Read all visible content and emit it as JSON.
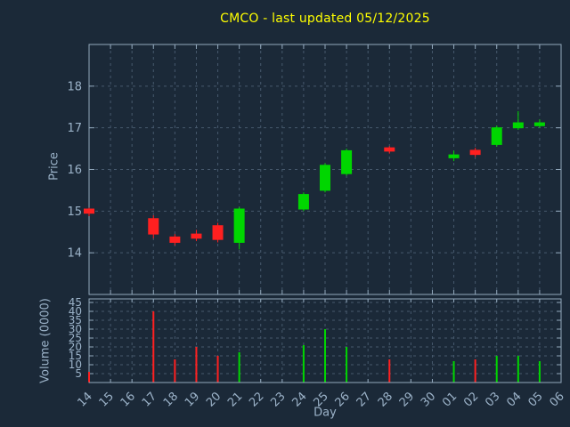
{
  "chart_data": {
    "type": "candlestick",
    "title": "CMCO - last updated 05/12/2025",
    "xlabel": "Day",
    "x_categories": [
      "14",
      "15",
      "16",
      "17",
      "18",
      "19",
      "20",
      "21",
      "22",
      "23",
      "24",
      "25",
      "26",
      "27",
      "28",
      "29",
      "30",
      "01",
      "02",
      "03",
      "04",
      "05",
      "06"
    ],
    "price_axis": {
      "label": "Price",
      "range": [
        13,
        19
      ],
      "ticks": [
        14,
        15,
        16,
        17,
        18
      ]
    },
    "volume_axis": {
      "label": "Volume (0000)",
      "range": [
        0,
        47
      ],
      "ticks": [
        5,
        10,
        15,
        20,
        25,
        30,
        35,
        40,
        45
      ]
    },
    "candles": [
      {
        "day": "14",
        "open": 15.05,
        "high": 15.08,
        "low": 14.88,
        "close": 14.95,
        "dir": "down",
        "volume": 6
      },
      {
        "day": "17",
        "open": 14.82,
        "high": 14.9,
        "low": 14.35,
        "close": 14.45,
        "dir": "down",
        "volume": 40
      },
      {
        "day": "18",
        "open": 14.38,
        "high": 14.45,
        "low": 14.18,
        "close": 14.25,
        "dir": "down",
        "volume": 13
      },
      {
        "day": "19",
        "open": 14.45,
        "high": 14.55,
        "low": 14.28,
        "close": 14.35,
        "dir": "down",
        "volume": 20
      },
      {
        "day": "20",
        "open": 14.65,
        "high": 14.72,
        "low": 14.25,
        "close": 14.32,
        "dir": "down",
        "volume": 15
      },
      {
        "day": "21",
        "open": 14.25,
        "high": 15.1,
        "low": 14.08,
        "close": 15.05,
        "dir": "up",
        "volume": 17
      },
      {
        "day": "24",
        "open": 15.05,
        "high": 15.45,
        "low": 15.0,
        "close": 15.4,
        "dir": "up",
        "volume": 21
      },
      {
        "day": "25",
        "open": 15.5,
        "high": 16.15,
        "low": 15.45,
        "close": 16.1,
        "dir": "up",
        "volume": 30
      },
      {
        "day": "26",
        "open": 15.9,
        "high": 16.5,
        "low": 15.85,
        "close": 16.45,
        "dir": "up",
        "volume": 20
      },
      {
        "day": "28",
        "open": 16.52,
        "high": 16.56,
        "low": 16.38,
        "close": 16.44,
        "dir": "down",
        "volume": 13
      },
      {
        "day": "01",
        "open": 16.28,
        "high": 16.45,
        "low": 16.2,
        "close": 16.35,
        "dir": "up",
        "volume": 12
      },
      {
        "day": "02",
        "open": 16.46,
        "high": 16.52,
        "low": 16.3,
        "close": 16.36,
        "dir": "down",
        "volume": 13
      },
      {
        "day": "03",
        "open": 16.6,
        "high": 17.05,
        "low": 16.55,
        "close": 17.0,
        "dir": "up",
        "volume": 15
      },
      {
        "day": "04",
        "open": 17.0,
        "high": 17.4,
        "low": 16.95,
        "close": 17.12,
        "dir": "up",
        "volume": 15
      },
      {
        "day": "05",
        "open": 17.05,
        "high": 17.2,
        "low": 17.0,
        "close": 17.12,
        "dir": "up",
        "volume": 12
      }
    ],
    "colors": {
      "background": "#1b2938",
      "title": "#ffff00",
      "axis_text": "#9cb3c9",
      "border": "#93a9bd",
      "grid": "#47596d",
      "up": "#00d600",
      "down": "#ff2020"
    }
  }
}
